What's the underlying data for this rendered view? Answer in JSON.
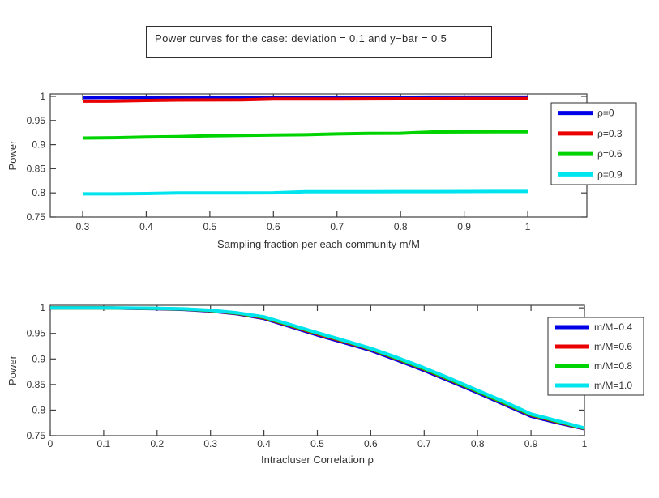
{
  "figure": {
    "title": "Power curves for the case: deviation = 0.1 and y−bar = 0.5"
  },
  "chart_data": [
    {
      "type": "line",
      "title": "",
      "xlabel": "Sampling fraction per each community m/M",
      "ylabel": "Power",
      "xlim": [
        0.249,
        1.093
      ],
      "ylim": [
        0.75,
        1.005
      ],
      "xticks": [
        0.3,
        0.4,
        0.5,
        0.6,
        0.7,
        0.8,
        0.9,
        1
      ],
      "xtick_labels": [
        "0.3",
        "0.4",
        "0.5",
        "0.6",
        "0.7",
        "0.8",
        "0.9",
        "1"
      ],
      "yticks": [
        0.75,
        0.8,
        0.85,
        0.9,
        0.95,
        1
      ],
      "ytick_labels": [
        "0.75",
        "0.8",
        "0.85",
        "0.9",
        "0.95",
        "1"
      ],
      "grid": false,
      "legend_position": "right-inside",
      "x": [
        0.3,
        0.35,
        0.4,
        0.45,
        0.5,
        0.55,
        0.6,
        0.65,
        0.7,
        0.75,
        0.8,
        0.85,
        0.9,
        0.95,
        1.0
      ],
      "series": [
        {
          "name": "ρ=0",
          "color": "#0000e6",
          "values": [
            0.9975,
            0.9976,
            0.9978,
            0.9979,
            0.998,
            0.998,
            0.9981,
            0.9982,
            0.9982,
            0.9983,
            0.9983,
            0.9984,
            0.9984,
            0.9985,
            0.9985
          ]
        },
        {
          "name": "ρ=0.3",
          "color": "#ea0000",
          "values": [
            0.99,
            0.9902,
            0.9916,
            0.9925,
            0.9926,
            0.9928,
            0.9944,
            0.9945,
            0.9946,
            0.9948,
            0.9949,
            0.995,
            0.9952,
            0.9954,
            0.9955
          ]
        },
        {
          "name": "ρ=0.6",
          "color": "#00d400",
          "values": [
            0.9135,
            0.9142,
            0.9158,
            0.9166,
            0.9183,
            0.9189,
            0.9197,
            0.9205,
            0.9222,
            0.9232,
            0.9234,
            0.9262,
            0.9264,
            0.9266,
            0.9267
          ]
        },
        {
          "name": "ρ=0.9",
          "color": "#00e4ee",
          "values": [
            0.798,
            0.798,
            0.7986,
            0.7998,
            0.8,
            0.8,
            0.8001,
            0.8023,
            0.8024,
            0.8025,
            0.8026,
            0.8027,
            0.8029,
            0.803,
            0.803
          ]
        }
      ]
    },
    {
      "type": "line",
      "title": "",
      "xlabel": "Intracluser Correlation ρ",
      "ylabel": "Power",
      "xlim": [
        0,
        1
      ],
      "ylim": [
        0.75,
        1.005
      ],
      "xticks": [
        0,
        0.1,
        0.2,
        0.3,
        0.4,
        0.5,
        0.6,
        0.7,
        0.8,
        0.9,
        1
      ],
      "xtick_labels": [
        "0",
        "0.1",
        "0.2",
        "0.3",
        "0.4",
        "0.5",
        "0.6",
        "0.7",
        "0.8",
        "0.9",
        "1"
      ],
      "yticks": [
        0.75,
        0.8,
        0.85,
        0.9,
        0.95,
        1
      ],
      "ytick_labels": [
        "0.75",
        "0.8",
        "0.85",
        "0.9",
        "0.95",
        "1"
      ],
      "grid": false,
      "legend_position": "right-inside",
      "x": [
        0,
        0.05,
        0.1,
        0.15,
        0.2,
        0.25,
        0.3,
        0.35,
        0.4,
        0.45,
        0.5,
        0.55,
        0.6,
        0.65,
        0.7,
        0.75,
        0.8,
        0.85,
        0.9,
        0.95,
        1.0
      ],
      "series": [
        {
          "name": "m/M=0.4",
          "color": "#0000e6",
          "values": [
            1.0,
            1.0,
            0.9997,
            0.9991,
            0.9984,
            0.997,
            0.9938,
            0.9883,
            0.9792,
            0.963,
            0.9468,
            0.9318,
            0.9168,
            0.8975,
            0.8775,
            0.856,
            0.834,
            0.811,
            0.788,
            0.775,
            0.7635
          ]
        },
        {
          "name": "m/M=0.6",
          "color": "#ea0000",
          "values": [
            1.0,
            1.0,
            0.9998,
            0.9993,
            0.9987,
            0.9974,
            0.9944,
            0.9891,
            0.9805,
            0.9648,
            0.949,
            0.934,
            0.919,
            0.8998,
            0.8798,
            0.8583,
            0.8363,
            0.8133,
            0.7903,
            0.7768,
            0.764
          ]
        },
        {
          "name": "m/M=0.8",
          "color": "#00d400",
          "values": [
            1.0,
            1.0,
            0.9999,
            0.9994,
            0.9989,
            0.9977,
            0.9948,
            0.9897,
            0.9815,
            0.9658,
            0.9503,
            0.9353,
            0.9198,
            0.9008,
            0.8808,
            0.8593,
            0.8368,
            0.8143,
            0.7913,
            0.7778,
            0.7645
          ]
        },
        {
          "name": "m/M=1.0",
          "color": "#00e4ee",
          "values": [
            1.0,
            1.0,
            1.0,
            0.9996,
            0.9991,
            0.998,
            0.9953,
            0.9903,
            0.9825,
            0.967,
            0.9513,
            0.9363,
            0.9208,
            0.9025,
            0.8825,
            0.861,
            0.8385,
            0.8163,
            0.7925,
            0.779,
            0.765
          ]
        }
      ]
    }
  ]
}
